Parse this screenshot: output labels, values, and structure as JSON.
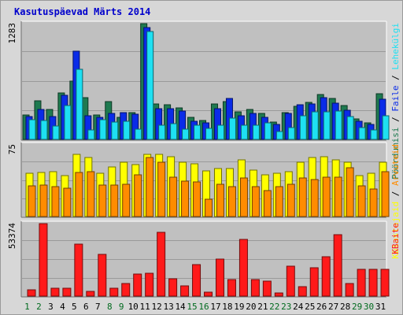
{
  "title": "Kasutuspäevad Märts 2014",
  "colors": {
    "background": "#d7d7d7",
    "plot": "#c0c0c0",
    "grid": "#9a9a9a",
    "visits": "#1e7a50",
    "pages": "#0a2be8",
    "files": "#1ee0f2",
    "hits": "#ffff00",
    "hosts": "#ff8c00",
    "kbytes": "#ff1a1a",
    "day_normal": "#000000",
    "day_weekend": "#006a1e"
  },
  "chart_data": [
    {
      "type": "bar",
      "panel": "visits-pages-files",
      "ymax_label": "1283",
      "ylim": [
        0,
        1283
      ],
      "legend": [
        "Pöördumisi",
        "Faile",
        "Lehekülgi"
      ],
      "series": [
        {
          "name": "Pöördumisi",
          "values": [
            270,
            427,
            334,
            518,
            650,
            460,
            270,
            423,
            248,
            296,
            1283,
            390,
            382,
            345,
            242,
            208,
            395,
            423,
            307,
            332,
            285,
            196,
            296,
            369,
            410,
            496,
            452,
            372,
            225,
            187,
            505
          ]
        },
        {
          "name": "Faile",
          "values": [
            250,
            330,
            250,
            488,
            978,
            258,
            245,
            290,
            296,
            278,
            1240,
            338,
            340,
            310,
            200,
            180,
            340,
            456,
            258,
            290,
            245,
            165,
            285,
            380,
            393,
            465,
            405,
            320,
            198,
            170,
            446
          ]
        },
        {
          "name": "Lehekülgi",
          "values": [
            215,
            210,
            145,
            375,
            780,
            108,
            220,
            195,
            198,
            113,
            1195,
            160,
            175,
            115,
            160,
            118,
            153,
            232,
            158,
            155,
            183,
            84,
            135,
            260,
            305,
            308,
            310,
            253,
            128,
            105,
            262
          ]
        }
      ]
    },
    {
      "type": "bar",
      "panel": "hits-hosts",
      "ymax_label": "75",
      "ylim": [
        0,
        75
      ],
      "legend": [
        "Külastajaid",
        "Arvuteid"
      ],
      "series": [
        {
          "name": "Külastajaid",
          "values": [
            45,
            46,
            47,
            43,
            65,
            62,
            45,
            52,
            57,
            54,
            65,
            65,
            63,
            57,
            55,
            48,
            50,
            50,
            59,
            49,
            44,
            45,
            47,
            57,
            62,
            63,
            59,
            57,
            43,
            45,
            57
          ]
        },
        {
          "name": "Arvuteid",
          "values": [
            32,
            33,
            31,
            30,
            46,
            47,
            33,
            33,
            34,
            44,
            62,
            57,
            41,
            37,
            36,
            18,
            34,
            31,
            40,
            31,
            27,
            31,
            34,
            40,
            39,
            41,
            41,
            51,
            32,
            29,
            47
          ]
        }
      ]
    },
    {
      "type": "bar",
      "panel": "kbytes",
      "ymax_label": "53374",
      "ylim": [
        0,
        53374
      ],
      "legend": [
        "KBaite"
      ],
      "series": [
        {
          "name": "KBaite",
          "values": [
            4500,
            53374,
            6000,
            6000,
            38000,
            3500,
            31000,
            6000,
            9200,
            16500,
            17000,
            47000,
            12500,
            7600,
            23000,
            3000,
            27500,
            12000,
            42000,
            12000,
            11000,
            2400,
            22000,
            7200,
            21000,
            29000,
            45000,
            9000,
            20000,
            20000,
            20000
          ]
        }
      ]
    }
  ],
  "days": [
    "1",
    "2",
    "3",
    "4",
    "5",
    "6",
    "7",
    "8",
    "9",
    "10",
    "11",
    "12",
    "13",
    "14",
    "15",
    "16",
    "17",
    "18",
    "19",
    "20",
    "21",
    "22",
    "23",
    "24",
    "25",
    "26",
    "27",
    "28",
    "29",
    "30",
    "31"
  ],
  "weekend_days": [
    1,
    2,
    8,
    9,
    15,
    16,
    22,
    23,
    29,
    30
  ]
}
